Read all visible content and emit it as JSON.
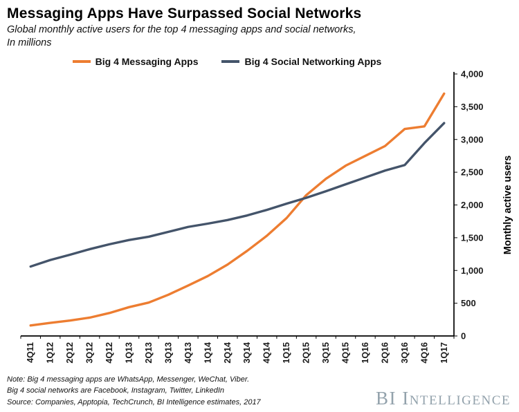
{
  "header": {
    "title": "Messaging Apps Have Surpassed Social Networks",
    "subtitle_line1": "Global monthly active users for the top 4 messaging apps and social networks,",
    "subtitle_line2": "In millions"
  },
  "chart_data": {
    "type": "line",
    "title": "Messaging Apps Have Surpassed Social Networks",
    "subtitle": "Global monthly active users for the top 4 messaging apps and social networks, In millions",
    "categories": [
      "4Q11",
      "1Q12",
      "2Q12",
      "3Q12",
      "4Q12",
      "1Q13",
      "2Q13",
      "3Q13",
      "4Q13",
      "1Q14",
      "2Q14",
      "3Q14",
      "4Q14",
      "1Q15",
      "2Q15",
      "3Q15",
      "4Q15",
      "1Q16",
      "2Q16",
      "3Q16",
      "4Q16",
      "1Q17"
    ],
    "series": [
      {
        "name": "Big 4 Messaging Apps",
        "color": "#ED7D31",
        "values": [
          160,
          200,
          235,
          280,
          350,
          440,
          510,
          630,
          770,
          915,
          1090,
          1300,
          1530,
          1800,
          2150,
          2400,
          2600,
          2750,
          2900,
          3160,
          3200,
          3700
        ]
      },
      {
        "name": "Big 4 Social Networking Apps",
        "color": "#44546A",
        "values": [
          1060,
          1160,
          1240,
          1325,
          1400,
          1465,
          1515,
          1590,
          1665,
          1715,
          1770,
          1840,
          1925,
          2020,
          2110,
          2210,
          2315,
          2420,
          2525,
          2610,
          2945,
          3250
        ]
      }
    ],
    "xlabel": "",
    "ylabel": "Monthly active users",
    "ylim": [
      0,
      4000
    ],
    "ytick_step": 500,
    "ytick_labels": [
      "0",
      "500",
      "1,000",
      "1,500",
      "2,000",
      "2,500",
      "3,000",
      "3,500",
      "4,000"
    ],
    "y_axis_side": "right",
    "legend_position": "top",
    "grid": false
  },
  "footer": {
    "note_line1": "Note: Big 4 messaging apps are WhatsApp, Messenger, WeChat, Viber.",
    "note_line2": "Big 4 social networks are Facebook, Instagram, Twitter, LinkedIn",
    "source_line": "Source: Companies,  Apptopia, TechCrunch,  BI Intelligence estimates, 2017",
    "brand": "BI Intelligence",
    "brand_color": "#93A2AC"
  }
}
